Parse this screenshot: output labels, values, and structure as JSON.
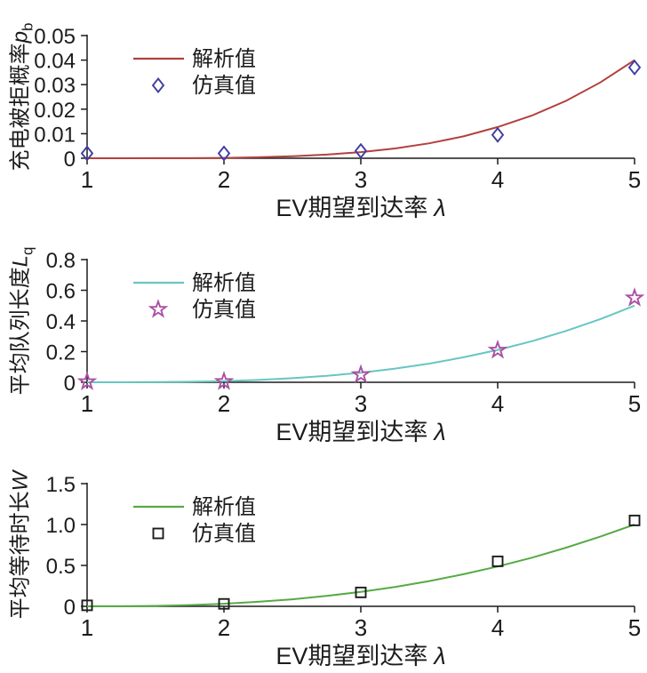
{
  "chart_data": [
    {
      "type": "line",
      "ylabel": "充电被拒概率",
      "ylabel_var": "p",
      "ylabel_sub": "b",
      "xlabel": "EV期望到达率",
      "xlabel_var": "λ",
      "legend": {
        "line": "解析值",
        "marker": "仿真值"
      },
      "legend_position": "upper-left",
      "line_color": "#b2413d",
      "marker_color": "#3e3ea0",
      "marker": "diamond",
      "xlim": [
        1,
        5
      ],
      "ylim": [
        0,
        0.05
      ],
      "xticks": [
        1,
        2,
        3,
        4,
        5
      ],
      "xtick_labels": [
        "1",
        "2",
        "3",
        "4",
        "5"
      ],
      "yticks": [
        0,
        0.01,
        0.02,
        0.03,
        0.04,
        0.05
      ],
      "ytick_labels": [
        "0",
        "0.01",
        "0.02",
        "0.03",
        "0.04",
        "0.05"
      ],
      "line": {
        "name": "解析值",
        "x": [
          1,
          1.25,
          1.5,
          1.75,
          2,
          2.25,
          2.5,
          2.75,
          3,
          3.25,
          3.5,
          3.75,
          4,
          4.25,
          4.5,
          4.75,
          5
        ],
        "y": [
          0,
          1e-05,
          2e-05,
          5e-05,
          0.00016,
          0.0004,
          0.0008,
          0.0015,
          0.0025,
          0.004,
          0.0061,
          0.0089,
          0.0127,
          0.0174,
          0.0234,
          0.0309,
          0.04
        ]
      },
      "markers": {
        "name": "仿真值",
        "x": [
          1,
          2,
          3,
          4,
          5
        ],
        "y": [
          0.002,
          0.002,
          0.003,
          0.0095,
          0.037
        ]
      }
    },
    {
      "type": "line",
      "ylabel": "平均队列长度",
      "ylabel_var": "L",
      "ylabel_sub": "q",
      "xlabel": "EV期望到达率",
      "xlabel_var": "λ",
      "legend": {
        "line": "解析值",
        "marker": "仿真值"
      },
      "legend_position": "upper-left",
      "line_color": "#66c6c2",
      "marker_color": "#ab4fa5",
      "marker": "star",
      "xlim": [
        1,
        5
      ],
      "ylim": [
        0,
        0.8
      ],
      "xticks": [
        1,
        2,
        3,
        4,
        5
      ],
      "xtick_labels": [
        "1",
        "2",
        "3",
        "4",
        "5"
      ],
      "yticks": [
        0,
        0.2,
        0.4,
        0.6,
        0.8
      ],
      "ytick_labels": [
        "0",
        "0.2",
        "0.4",
        "0.6",
        "0.8"
      ],
      "line": {
        "name": "解析值",
        "x": [
          1,
          1.25,
          1.5,
          1.75,
          2,
          2.25,
          2.5,
          2.75,
          3,
          3.25,
          3.5,
          3.75,
          4,
          4.25,
          4.5,
          4.75,
          5
        ],
        "y": [
          0,
          0.0001,
          0.001,
          0.0033,
          0.0078,
          0.0153,
          0.0264,
          0.0419,
          0.0625,
          0.089,
          0.122,
          0.163,
          0.211,
          0.268,
          0.335,
          0.412,
          0.5
        ]
      },
      "markers": {
        "name": "仿真值",
        "x": [
          1,
          2,
          3,
          4,
          5
        ],
        "y": [
          0.004,
          0.005,
          0.05,
          0.21,
          0.55
        ]
      }
    },
    {
      "type": "line",
      "ylabel": "平均等待时长",
      "ylabel_var": "W",
      "ylabel_sub": "",
      "xlabel": "EV期望到达率",
      "xlabel_var": "λ",
      "legend": {
        "line": "解析值",
        "marker": "仿真值"
      },
      "legend_position": "upper-left",
      "line_color": "#56aa45",
      "marker_color": "#1c1c1c",
      "marker": "square",
      "xlim": [
        1,
        5
      ],
      "ylim": [
        0,
        1.5
      ],
      "xticks": [
        1,
        2,
        3,
        4,
        5
      ],
      "xtick_labels": [
        "1",
        "2",
        "3",
        "4",
        "5"
      ],
      "yticks": [
        0,
        0.5,
        1.0,
        1.5
      ],
      "ytick_labels": [
        "0",
        "0.5",
        "1.0",
        "1.5"
      ],
      "line": {
        "name": "解析值",
        "x": [
          1,
          1.25,
          1.5,
          1.75,
          2,
          2.25,
          2.5,
          2.75,
          3,
          3.25,
          3.5,
          3.75,
          4,
          4.25,
          4.5,
          4.75,
          5
        ],
        "y": [
          0,
          0.001,
          0.0055,
          0.015,
          0.031,
          0.055,
          0.086,
          0.127,
          0.177,
          0.237,
          0.309,
          0.392,
          0.487,
          0.595,
          0.717,
          0.852,
          1.0
        ]
      },
      "markers": {
        "name": "仿真值",
        "x": [
          1,
          2,
          3,
          4,
          5
        ],
        "y": [
          0.012,
          0.03,
          0.17,
          0.55,
          1.05
        ]
      }
    }
  ]
}
